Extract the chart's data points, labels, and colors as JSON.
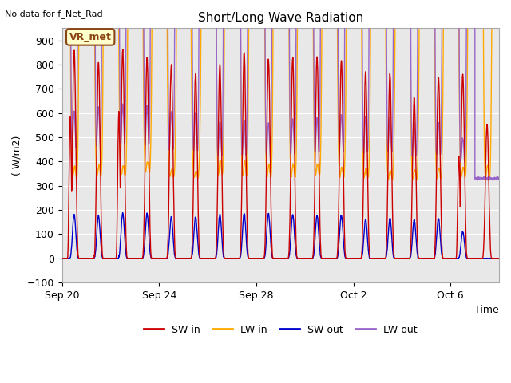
{
  "title": "Short/Long Wave Radiation",
  "xlabel": "Time",
  "ylabel": "( W/m2)",
  "ylim": [
    -100,
    950
  ],
  "yticks": [
    -100,
    0,
    100,
    200,
    300,
    400,
    500,
    600,
    700,
    800,
    900
  ],
  "no_data_text": "No data for f_Net_Rad",
  "station_label": "VR_met",
  "x_tick_labels": [
    "Sep 20",
    "Sep 24",
    "Sep 28",
    "Oct 2",
    "Oct 6"
  ],
  "x_tick_positions": [
    0,
    4,
    8,
    12,
    16
  ],
  "bg_color": "#e8e8e8",
  "fig_color": "#ffffff",
  "legend": [
    {
      "label": "SW in",
      "color": "#cc0000"
    },
    {
      "label": "LW in",
      "color": "#ffaa00"
    },
    {
      "label": "SW out",
      "color": "#0000cc"
    },
    {
      "label": "LW out",
      "color": "#9966cc"
    }
  ],
  "num_days": 18,
  "SW_in_peaks": [
    860,
    810,
    860,
    830,
    800,
    760,
    800,
    850,
    820,
    830,
    830,
    820,
    770,
    760,
    660,
    750,
    760,
    550
  ],
  "SW_in_secondary": [
    580,
    0,
    600,
    0,
    0,
    0,
    0,
    0,
    0,
    0,
    0,
    0,
    0,
    0,
    0,
    0,
    420,
    0
  ],
  "LW_in_base": [
    295,
    310,
    320,
    330,
    315,
    320,
    300,
    300,
    295,
    300,
    310,
    310,
    310,
    310,
    305,
    305,
    310,
    295
  ],
  "LW_in_peaks": [
    370,
    375,
    375,
    390,
    360,
    355,
    395,
    390,
    380,
    380,
    380,
    370,
    365,
    355,
    360,
    365,
    370,
    375
  ],
  "SW_out_peaks": [
    180,
    175,
    185,
    185,
    170,
    170,
    180,
    185,
    185,
    180,
    175,
    175,
    160,
    165,
    160,
    165,
    110,
    0
  ],
  "LW_out_base": [
    355,
    355,
    360,
    360,
    345,
    340,
    330,
    330,
    325,
    330,
    340,
    345,
    340,
    345,
    335,
    335,
    335,
    330
  ],
  "LW_out_peaks": [
    580,
    600,
    610,
    605,
    580,
    575,
    545,
    545,
    540,
    555,
    560,
    570,
    560,
    560,
    535,
    540,
    480,
    0
  ]
}
